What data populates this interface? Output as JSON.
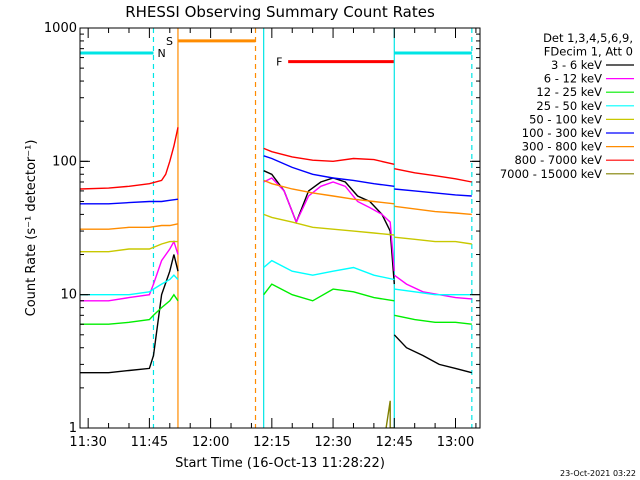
{
  "chart_data": {
    "type": "line",
    "title": "RHESSI Observing Summary Count Rates",
    "ylabel": "Count Rate (s⁻¹ detector⁻¹)",
    "xlabel": "Start Time (16-Oct-13 11:28:22)",
    "yscale": "log",
    "ylim": [
      1,
      1000
    ],
    "xlim": [
      "11:28",
      "13:06"
    ],
    "y_ticks": [
      "1",
      "10",
      "100",
      "1000"
    ],
    "x_ticks": [
      "11:30",
      "11:45",
      "12:00",
      "12:15",
      "12:30",
      "12:45",
      "13:00"
    ],
    "legend_header": [
      "Det 1,3,4,5,6,9,",
      "FDecim 1, Att 0"
    ],
    "legend_position": "right",
    "timestamp": "23-Oct-2021 03:22",
    "flags": [
      {
        "label": "N",
        "color": "#00e5e5",
        "y": 650,
        "segments": [
          [
            "11:28",
            "11:46"
          ],
          [
            "12:45",
            "13:04"
          ]
        ]
      },
      {
        "label": "S",
        "color": "#ff8c00",
        "y": 800,
        "segments": [
          [
            "11:52",
            "12:11"
          ]
        ]
      },
      {
        "label": "F",
        "color": "#ff0000",
        "y": 560,
        "segments": [
          [
            "12:19",
            "12:45"
          ]
        ]
      }
    ],
    "markers": [
      {
        "time": "11:46",
        "color": "#00e5e5",
        "style": "dashed"
      },
      {
        "time": "11:52",
        "color": "#ff8c00",
        "style": "solid"
      },
      {
        "time": "12:11",
        "color": "#ff8c00",
        "style": "dashed"
      },
      {
        "time": "12:13",
        "color": "#00e5e5",
        "style": "solid"
      },
      {
        "time": "12:45",
        "color": "#00e5e5",
        "style": "solid"
      },
      {
        "time": "13:04",
        "color": "#00e5e5",
        "style": "dashed"
      }
    ],
    "series": [
      {
        "name": "3 - 6 keV",
        "color": "#000000",
        "segments": [
          {
            "x": [
              "11:28",
              "11:35",
              "11:40",
              "11:45",
              "11:46",
              "11:48",
              "11:50",
              "11:51",
              "11:52"
            ],
            "y": [
              2.6,
              2.6,
              2.7,
              2.8,
              3.5,
              10,
              15,
              20,
              15
            ]
          },
          {
            "x": [
              "12:13",
              "12:15",
              "12:18",
              "12:21",
              "12:24",
              "12:27",
              "12:30",
              "12:33",
              "12:36",
              "12:39",
              "12:42",
              "12:44",
              "12:45"
            ],
            "y": [
              85,
              80,
              60,
              35,
              60,
              70,
              75,
              70,
              55,
              50,
              40,
              30,
              12
            ]
          },
          {
            "x": [
              "12:45",
              "12:48",
              "12:52",
              "12:56",
              "13:00",
              "13:04"
            ],
            "y": [
              5,
              4,
              3.5,
              3,
              2.8,
              2.6
            ]
          }
        ]
      },
      {
        "name": "6 - 12 keV",
        "color": "#ff00ff",
        "segments": [
          {
            "x": [
              "11:28",
              "11:35",
              "11:40",
              "11:45",
              "11:46",
              "11:48",
              "11:50",
              "11:51",
              "11:52"
            ],
            "y": [
              9,
              9,
              9.5,
              10,
              12,
              18,
              22,
              25,
              20
            ]
          },
          {
            "x": [
              "12:13",
              "12:15",
              "12:18",
              "12:21",
              "12:24",
              "12:27",
              "12:30",
              "12:33",
              "12:36",
              "12:39",
              "12:42",
              "12:44",
              "12:45"
            ],
            "y": [
              70,
              75,
              60,
              35,
              55,
              65,
              70,
              65,
              50,
              45,
              40,
              35,
              15
            ]
          },
          {
            "x": [
              "12:45",
              "12:48",
              "12:52",
              "12:56",
              "13:00",
              "13:04"
            ],
            "y": [
              14,
              12,
              10.5,
              10,
              9.5,
              9.3
            ]
          }
        ]
      },
      {
        "name": "12 - 25 keV",
        "color": "#00ee00",
        "segments": [
          {
            "x": [
              "11:28",
              "11:35",
              "11:40",
              "11:45",
              "11:46",
              "11:48",
              "11:50",
              "11:51",
              "11:52"
            ],
            "y": [
              6,
              6,
              6.2,
              6.5,
              7,
              8,
              9,
              10,
              9
            ]
          },
          {
            "x": [
              "12:13",
              "12:15",
              "12:20",
              "12:25",
              "12:30",
              "12:35",
              "12:40",
              "12:45"
            ],
            "y": [
              10,
              12,
              10,
              9,
              11,
              10.5,
              9.5,
              9
            ]
          },
          {
            "x": [
              "12:45",
              "12:50",
              "12:55",
              "13:00",
              "13:04"
            ],
            "y": [
              7,
              6.5,
              6.2,
              6.2,
              6
            ]
          }
        ]
      },
      {
        "name": "25 - 50 keV",
        "color": "#00ffff",
        "segments": [
          {
            "x": [
              "11:28",
              "11:35",
              "11:40",
              "11:45",
              "11:46",
              "11:48",
              "11:50",
              "11:51",
              "11:52"
            ],
            "y": [
              10,
              10,
              10,
              10.5,
              11,
              12,
              13,
              14,
              13
            ]
          },
          {
            "x": [
              "12:13",
              "12:15",
              "12:20",
              "12:25",
              "12:30",
              "12:35",
              "12:40",
              "12:45"
            ],
            "y": [
              16,
              18,
              15,
              14,
              15,
              16,
              14,
              13
            ]
          },
          {
            "x": [
              "12:45",
              "12:50",
              "12:55",
              "13:00",
              "13:04"
            ],
            "y": [
              11,
              10.5,
              10,
              10,
              10
            ]
          }
        ]
      },
      {
        "name": "50 - 100 keV",
        "color": "#c8c800",
        "segments": [
          {
            "x": [
              "11:28",
              "11:35",
              "11:40",
              "11:45",
              "11:48",
              "11:50",
              "11:52"
            ],
            "y": [
              21,
              21,
              22,
              22,
              24,
              25,
              25
            ]
          },
          {
            "x": [
              "12:13",
              "12:15",
              "12:20",
              "12:25",
              "12:30",
              "12:35",
              "12:40",
              "12:45"
            ],
            "y": [
              40,
              38,
              35,
              32,
              31,
              30,
              29,
              28
            ]
          },
          {
            "x": [
              "12:45",
              "12:50",
              "12:55",
              "13:00",
              "13:04"
            ],
            "y": [
              27,
              26,
              25,
              25,
              24
            ]
          }
        ]
      },
      {
        "name": "100 - 300 keV",
        "color": "#0000ff",
        "segments": [
          {
            "x": [
              "11:28",
              "11:35",
              "11:40",
              "11:45",
              "11:48",
              "11:50",
              "11:52"
            ],
            "y": [
              48,
              48,
              49,
              50,
              50,
              51,
              52
            ]
          },
          {
            "x": [
              "12:13",
              "12:15",
              "12:20",
              "12:25",
              "12:30",
              "12:35",
              "12:40",
              "12:45"
            ],
            "y": [
              110,
              105,
              90,
              80,
              75,
              72,
              68,
              65
            ]
          },
          {
            "x": [
              "12:45",
              "12:50",
              "12:55",
              "13:00",
              "13:04"
            ],
            "y": [
              62,
              60,
              58,
              56,
              55
            ]
          }
        ]
      },
      {
        "name": "300 - 800 keV",
        "color": "#ff8c00",
        "segments": [
          {
            "x": [
              "11:28",
              "11:35",
              "11:40",
              "11:45",
              "11:48",
              "11:50",
              "11:52"
            ],
            "y": [
              31,
              31,
              32,
              32,
              33,
              33,
              34
            ]
          },
          {
            "x": [
              "12:13",
              "12:15",
              "12:20",
              "12:25",
              "12:30",
              "12:35",
              "12:40",
              "12:45"
            ],
            "y": [
              72,
              68,
              62,
              58,
              55,
              52,
              50,
              48
            ]
          },
          {
            "x": [
              "12:45",
              "12:50",
              "12:55",
              "13:00",
              "13:04"
            ],
            "y": [
              46,
              44,
              42,
              41,
              40
            ]
          }
        ]
      },
      {
        "name": "800 - 7000 keV",
        "color": "#ff0000",
        "segments": [
          {
            "x": [
              "11:28",
              "11:35",
              "11:40",
              "11:45",
              "11:48",
              "11:49",
              "11:50",
              "11:51",
              "11:52"
            ],
            "y": [
              62,
              63,
              65,
              68,
              72,
              80,
              100,
              130,
              180
            ]
          },
          {
            "x": [
              "12:13",
              "12:15",
              "12:20",
              "12:25",
              "12:30",
              "12:35",
              "12:40",
              "12:45"
            ],
            "y": [
              125,
              118,
              108,
              102,
              100,
              105,
              103,
              95
            ]
          },
          {
            "x": [
              "12:45",
              "12:50",
              "12:55",
              "13:00",
              "13:04"
            ],
            "y": [
              88,
              82,
              78,
              74,
              70
            ]
          }
        ]
      },
      {
        "name": "7000 - 15000 keV",
        "color": "#808000",
        "segments": [
          {
            "x": [
              "12:43",
              "12:44",
              "12:44",
              "12:45"
            ],
            "y": [
              1,
              1.6,
              1,
              1
            ]
          }
        ]
      }
    ]
  }
}
